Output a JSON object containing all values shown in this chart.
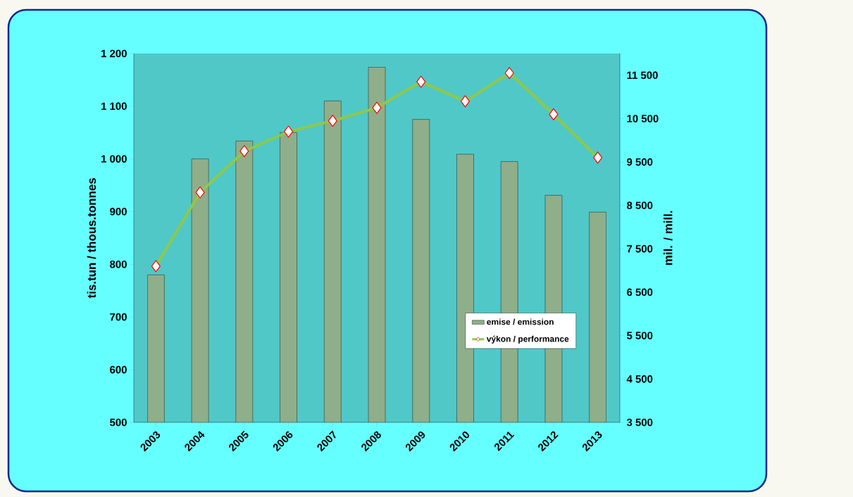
{
  "chart_data": {
    "type": "bar",
    "ylabel": "tis.tun / thous.tonnes",
    "y2label": "mil. / mill.",
    "categories": [
      "2003",
      "2004",
      "2005",
      "2006",
      "2007",
      "2008",
      "2009",
      "2010",
      "2011",
      "2012",
      "2013"
    ],
    "series": [
      {
        "name": "emise / emission",
        "color": "#8fae8a",
        "values": [
          780,
          1000,
          1034,
          1050,
          1110,
          1174,
          1075,
          1009,
          995,
          931,
          899
        ]
      },
      {
        "name": "výkon / performance",
        "type": "line",
        "axis": "y2",
        "color": "#8fc84a",
        "marker": "diamond",
        "line_style": "solid",
        "values": [
          7100,
          8800,
          9750,
          10200,
          10450,
          10750,
          11350,
          10900,
          11550,
          10600,
          9600
        ]
      }
    ],
    "ylim": [
      500,
      1200
    ],
    "yticks": [
      500,
      600,
      700,
      800,
      900,
      {
        "value": 1000,
        "label": "1 000"
      },
      {
        "value": 1100,
        "label": "1 100"
      },
      {
        "value": 1200,
        "label": "1 200"
      }
    ],
    "y2lim": [
      3500,
      12000
    ],
    "y2ticks": [
      {
        "value": 3500,
        "label": "3 500"
      },
      {
        "value": 4500,
        "label": "4 500"
      },
      {
        "value": 5500,
        "label": "5 500"
      },
      {
        "value": 6500,
        "label": "6 500"
      },
      {
        "value": 7500,
        "label": "7 500"
      },
      {
        "value": 8500,
        "label": "8 500"
      },
      {
        "value": 9500,
        "label": "9 500"
      },
      {
        "value": 10500,
        "label": "10 500"
      },
      {
        "value": 11500,
        "label": "11 500"
      }
    ],
    "grid": false,
    "legend": "bottom right"
  }
}
